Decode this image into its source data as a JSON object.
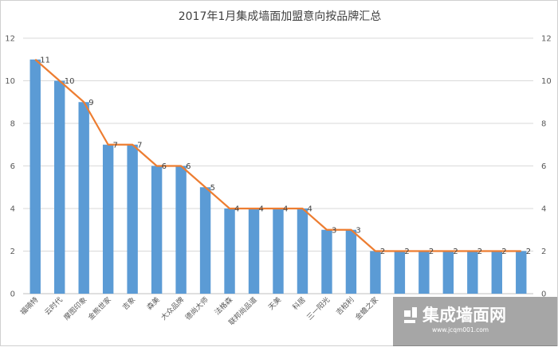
{
  "chart_data": {
    "type": "bar",
    "title": "2017年1月集成墙面加盟意向按品牌汇总",
    "categories": [
      "福喃特",
      "云时代",
      "摩图印象",
      "金熊世家",
      "吉象",
      "森美",
      "大众品牌",
      "德尚大师",
      "法格森",
      "联邦尚品道",
      "天美",
      "科居",
      "三一阳光",
      "吉柏利",
      "金蟾之家",
      "",
      "",
      "",
      "",
      "",
      ""
    ],
    "series": [
      {
        "type": "bar",
        "values": [
          11,
          10,
          9,
          7,
          7,
          6,
          6,
          5,
          4,
          4,
          4,
          4,
          3,
          3,
          2,
          2,
          2,
          2,
          2,
          2,
          2
        ],
        "color": "#5B9BD5"
      },
      {
        "type": "line",
        "values": [
          11,
          10,
          9,
          7,
          7,
          6,
          6,
          5,
          4,
          4,
          4,
          4,
          3,
          3,
          2,
          2,
          2,
          2,
          2,
          2,
          2
        ],
        "color": "#ED7D31"
      }
    ],
    "ylim": [
      0,
      12
    ],
    "yticks": [
      0,
      2,
      4,
      6,
      8,
      10,
      12
    ],
    "secondary_axis": true,
    "grid": true,
    "watermark": {
      "brand": "集成墙面网",
      "url": "www.jcqm001.com"
    }
  }
}
